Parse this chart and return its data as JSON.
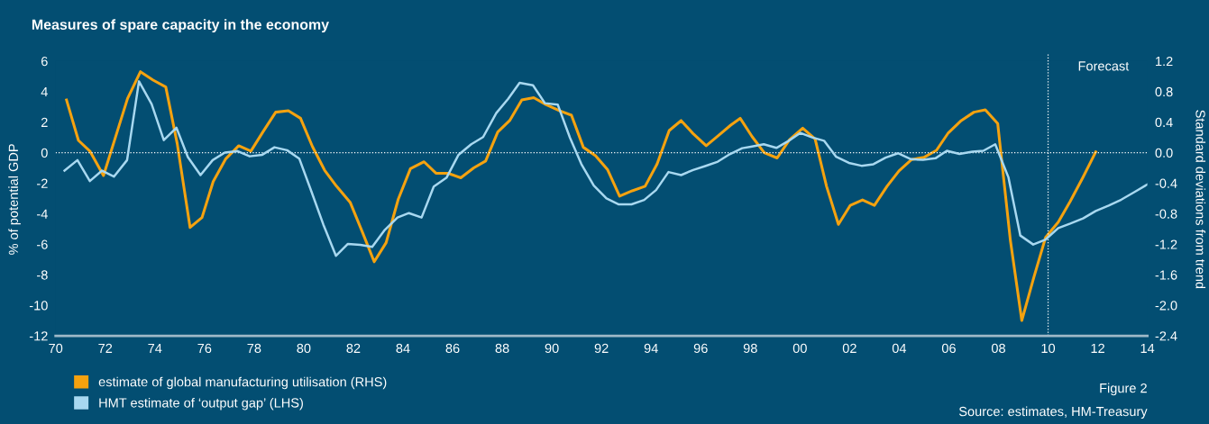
{
  "chart_data": {
    "type": "line",
    "title": "Measures of spare capacity in the economy",
    "ylabel": "% of potential GDP",
    "y2label": "Standard deviations from trend",
    "series": [
      {
        "name": "estimate of global manufacturing utilisation (RHS)",
        "color": "#f5a20f",
        "axis": "y2",
        "x": [
          1970.44,
          1970.92,
          1971.38,
          1971.93,
          1972.41,
          1972.9,
          1973.42,
          1973.93,
          1974.44,
          1974.9,
          1975.42,
          1975.9,
          1976.35,
          1976.86,
          1977.38,
          1977.87,
          1978.37,
          1978.87,
          1979.38,
          1979.87,
          1980.35,
          1980.84,
          1981.32,
          1981.87,
          1982.35,
          1982.84,
          1983.32,
          1983.81,
          1984.3,
          1984.85,
          1985.33,
          1985.82,
          1986.33,
          1986.85,
          1987.33,
          1987.82,
          1988.3,
          1988.79,
          1989.27,
          1989.76,
          1990.3,
          1990.79,
          1991.27,
          1991.76,
          1992.24,
          1992.73,
          1993.24,
          1993.76,
          1994.24,
          1994.73,
          1995.21,
          1995.69,
          1996.22,
          1996.7,
          1997.21,
          1997.59,
          1998.07,
          1998.56,
          1999.08,
          1999.58,
          2000.11,
          2000.61,
          2001.07,
          2001.55,
          2002.03,
          2002.52,
          2003.0,
          2003.51,
          2003.99,
          2004.5,
          2005.01,
          2005.5,
          2005.98,
          2006.5,
          2007.01,
          2007.47,
          2007.97,
          2008.48,
          2008.94,
          2009.42,
          2009.9,
          2010.41,
          2010.89,
          2011.41,
          2011.92
        ],
        "values": [
          0.69,
          0.16,
          0.02,
          -0.3,
          0.2,
          0.71,
          1.06,
          0.95,
          0.86,
          0.12,
          -0.98,
          -0.85,
          -0.38,
          -0.08,
          0.09,
          0.02,
          0.28,
          0.53,
          0.55,
          0.45,
          0.08,
          -0.23,
          -0.44,
          -0.65,
          -1.03,
          -1.43,
          -1.18,
          -0.61,
          -0.21,
          -0.12,
          -0.27,
          -0.27,
          -0.33,
          -0.2,
          -0.11,
          0.27,
          0.42,
          0.69,
          0.72,
          0.63,
          0.55,
          0.49,
          0.07,
          -0.04,
          -0.22,
          -0.57,
          -0.5,
          -0.44,
          -0.15,
          0.29,
          0.42,
          0.25,
          0.09,
          0.22,
          0.36,
          0.45,
          0.21,
          0.0,
          -0.07,
          0.17,
          0.32,
          0.18,
          -0.44,
          -0.94,
          -0.69,
          -0.62,
          -0.69,
          -0.44,
          -0.24,
          -0.09,
          -0.06,
          0.03,
          0.26,
          0.42,
          0.53,
          0.56,
          0.38,
          -1.15,
          -2.2,
          -1.64,
          -1.11,
          -0.91,
          -0.64,
          -0.32,
          0.01
        ]
      },
      {
        "name": "HMT estimate of ‘output gap’ (LHS)",
        "color": "#a8d8f0",
        "axis": "y",
        "x": [
          1970.36,
          1970.88,
          1971.38,
          1971.87,
          1972.35,
          1972.88,
          1973.36,
          1973.87,
          1974.36,
          1974.87,
          1975.33,
          1975.84,
          1976.33,
          1976.82,
          1977.33,
          1977.82,
          1978.33,
          1978.82,
          1979.33,
          1979.82,
          1980.31,
          1980.79,
          1981.3,
          1981.78,
          1982.28,
          1982.76,
          1983.27,
          1983.78,
          1984.24,
          1984.75,
          1985.24,
          1985.76,
          1986.24,
          1986.75,
          1987.23,
          1987.76,
          1988.24,
          1988.7,
          1989.24,
          1989.72,
          1990.24,
          1990.73,
          1991.19,
          1991.69,
          1992.2,
          1992.7,
          1993.21,
          1993.72,
          1994.2,
          1994.7,
          1995.21,
          1995.69,
          1996.18,
          1996.69,
          1997.17,
          1997.67,
          1998.02,
          1998.54,
          1999.05,
          1999.52,
          2000.01,
          2000.49,
          2000.97,
          2001.46,
          2001.97,
          2002.48,
          2002.96,
          2003.45,
          2003.95,
          2004.47,
          2004.96,
          2005.46,
          2005.92,
          2006.43,
          2006.95,
          2007.39,
          2007.87,
          2008.4,
          2008.88,
          2009.4,
          2009.9,
          2010.41,
          2010.89,
          2011.41,
          2011.92,
          2012.44,
          2012.95,
          2013.47,
          2014.0
        ],
        "values": [
          -1.18,
          -0.49,
          -1.86,
          -1.18,
          -1.57,
          -0.49,
          4.67,
          3.18,
          0.82,
          1.63,
          -0.29,
          -1.47,
          -0.49,
          0.0,
          0.1,
          -0.24,
          -0.14,
          0.35,
          0.16,
          -0.39,
          -2.55,
          -4.71,
          -6.76,
          -5.98,
          -6.04,
          -6.18,
          -5.06,
          -4.25,
          -3.96,
          -4.25,
          -2.22,
          -1.63,
          -0.14,
          0.55,
          1.02,
          2.59,
          3.53,
          4.57,
          4.41,
          3.24,
          3.14,
          0.98,
          -0.75,
          -2.16,
          -3.0,
          -3.39,
          -3.39,
          -3.1,
          -2.45,
          -1.27,
          -1.47,
          -1.14,
          -0.88,
          -0.59,
          -0.1,
          0.29,
          0.39,
          0.55,
          0.31,
          0.75,
          1.29,
          1.0,
          0.78,
          -0.27,
          -0.67,
          -0.86,
          -0.76,
          -0.33,
          -0.04,
          -0.43,
          -0.47,
          -0.37,
          0.12,
          -0.08,
          0.06,
          0.12,
          0.55,
          -1.61,
          -5.43,
          -6.02,
          -5.69,
          -4.94,
          -4.65,
          -4.31,
          -3.82,
          -3.47,
          -3.08,
          -2.59,
          -2.08
        ]
      }
    ],
    "xlim": [
      1970,
      2014
    ],
    "xticks": [
      {
        "value": 1970,
        "label": "70"
      },
      {
        "value": 1972,
        "label": "72"
      },
      {
        "value": 1974,
        "label": "74"
      },
      {
        "value": 1976,
        "label": "76"
      },
      {
        "value": 1978,
        "label": "78"
      },
      {
        "value": 1980,
        "label": "80"
      },
      {
        "value": 1982,
        "label": "82"
      },
      {
        "value": 1984,
        "label": "84"
      },
      {
        "value": 1986,
        "label": "86"
      },
      {
        "value": 1988,
        "label": "88"
      },
      {
        "value": 1990,
        "label": "90"
      },
      {
        "value": 1992,
        "label": "92"
      },
      {
        "value": 1994,
        "label": "94"
      },
      {
        "value": 1996,
        "label": "96"
      },
      {
        "value": 1998,
        "label": "98"
      },
      {
        "value": 2000,
        "label": "00"
      },
      {
        "value": 2002,
        "label": "02"
      },
      {
        "value": 2004,
        "label": "04"
      },
      {
        "value": 2006,
        "label": "06"
      },
      {
        "value": 2008,
        "label": "08"
      },
      {
        "value": 2010,
        "label": "10"
      },
      {
        "value": 2012,
        "label": "12"
      },
      {
        "value": 2014,
        "label": "14"
      }
    ],
    "ylim": [
      -12,
      6
    ],
    "yticks": [
      -12,
      -10,
      -8,
      -6,
      -4,
      -2,
      0,
      2,
      4,
      6
    ],
    "y2lim": [
      -2.4,
      1.2
    ],
    "y2ticks": [
      {
        "value": -2.4,
        "label": "-2.4"
      },
      {
        "value": -2.0,
        "label": "-2.0"
      },
      {
        "value": -1.6,
        "label": "-1.6"
      },
      {
        "value": -1.2,
        "label": "-1.2"
      },
      {
        "value": -0.8,
        "label": "-0.8"
      },
      {
        "value": -0.4,
        "label": "-0.4"
      },
      {
        "value": 0,
        "label": "0.0"
      },
      {
        "value": 0.4,
        "label": "0.4"
      },
      {
        "value": 0.8,
        "label": "0.8"
      },
      {
        "value": 1.2,
        "label": "1.2"
      }
    ],
    "ref_lines": [
      {
        "axis": "y",
        "value": 0,
        "label": null,
        "color": "#ffffff",
        "line_style": "dotted"
      },
      {
        "axis": "x",
        "value": 2010,
        "label": "Forecast",
        "color": "#ffffff",
        "line_style": "dotted"
      }
    ],
    "annotations": [
      "Figure 2",
      "Source: estimates, HM-Treasury"
    ],
    "legend": "bottom",
    "grid": false,
    "marker": "none",
    "line_style": "solid"
  }
}
